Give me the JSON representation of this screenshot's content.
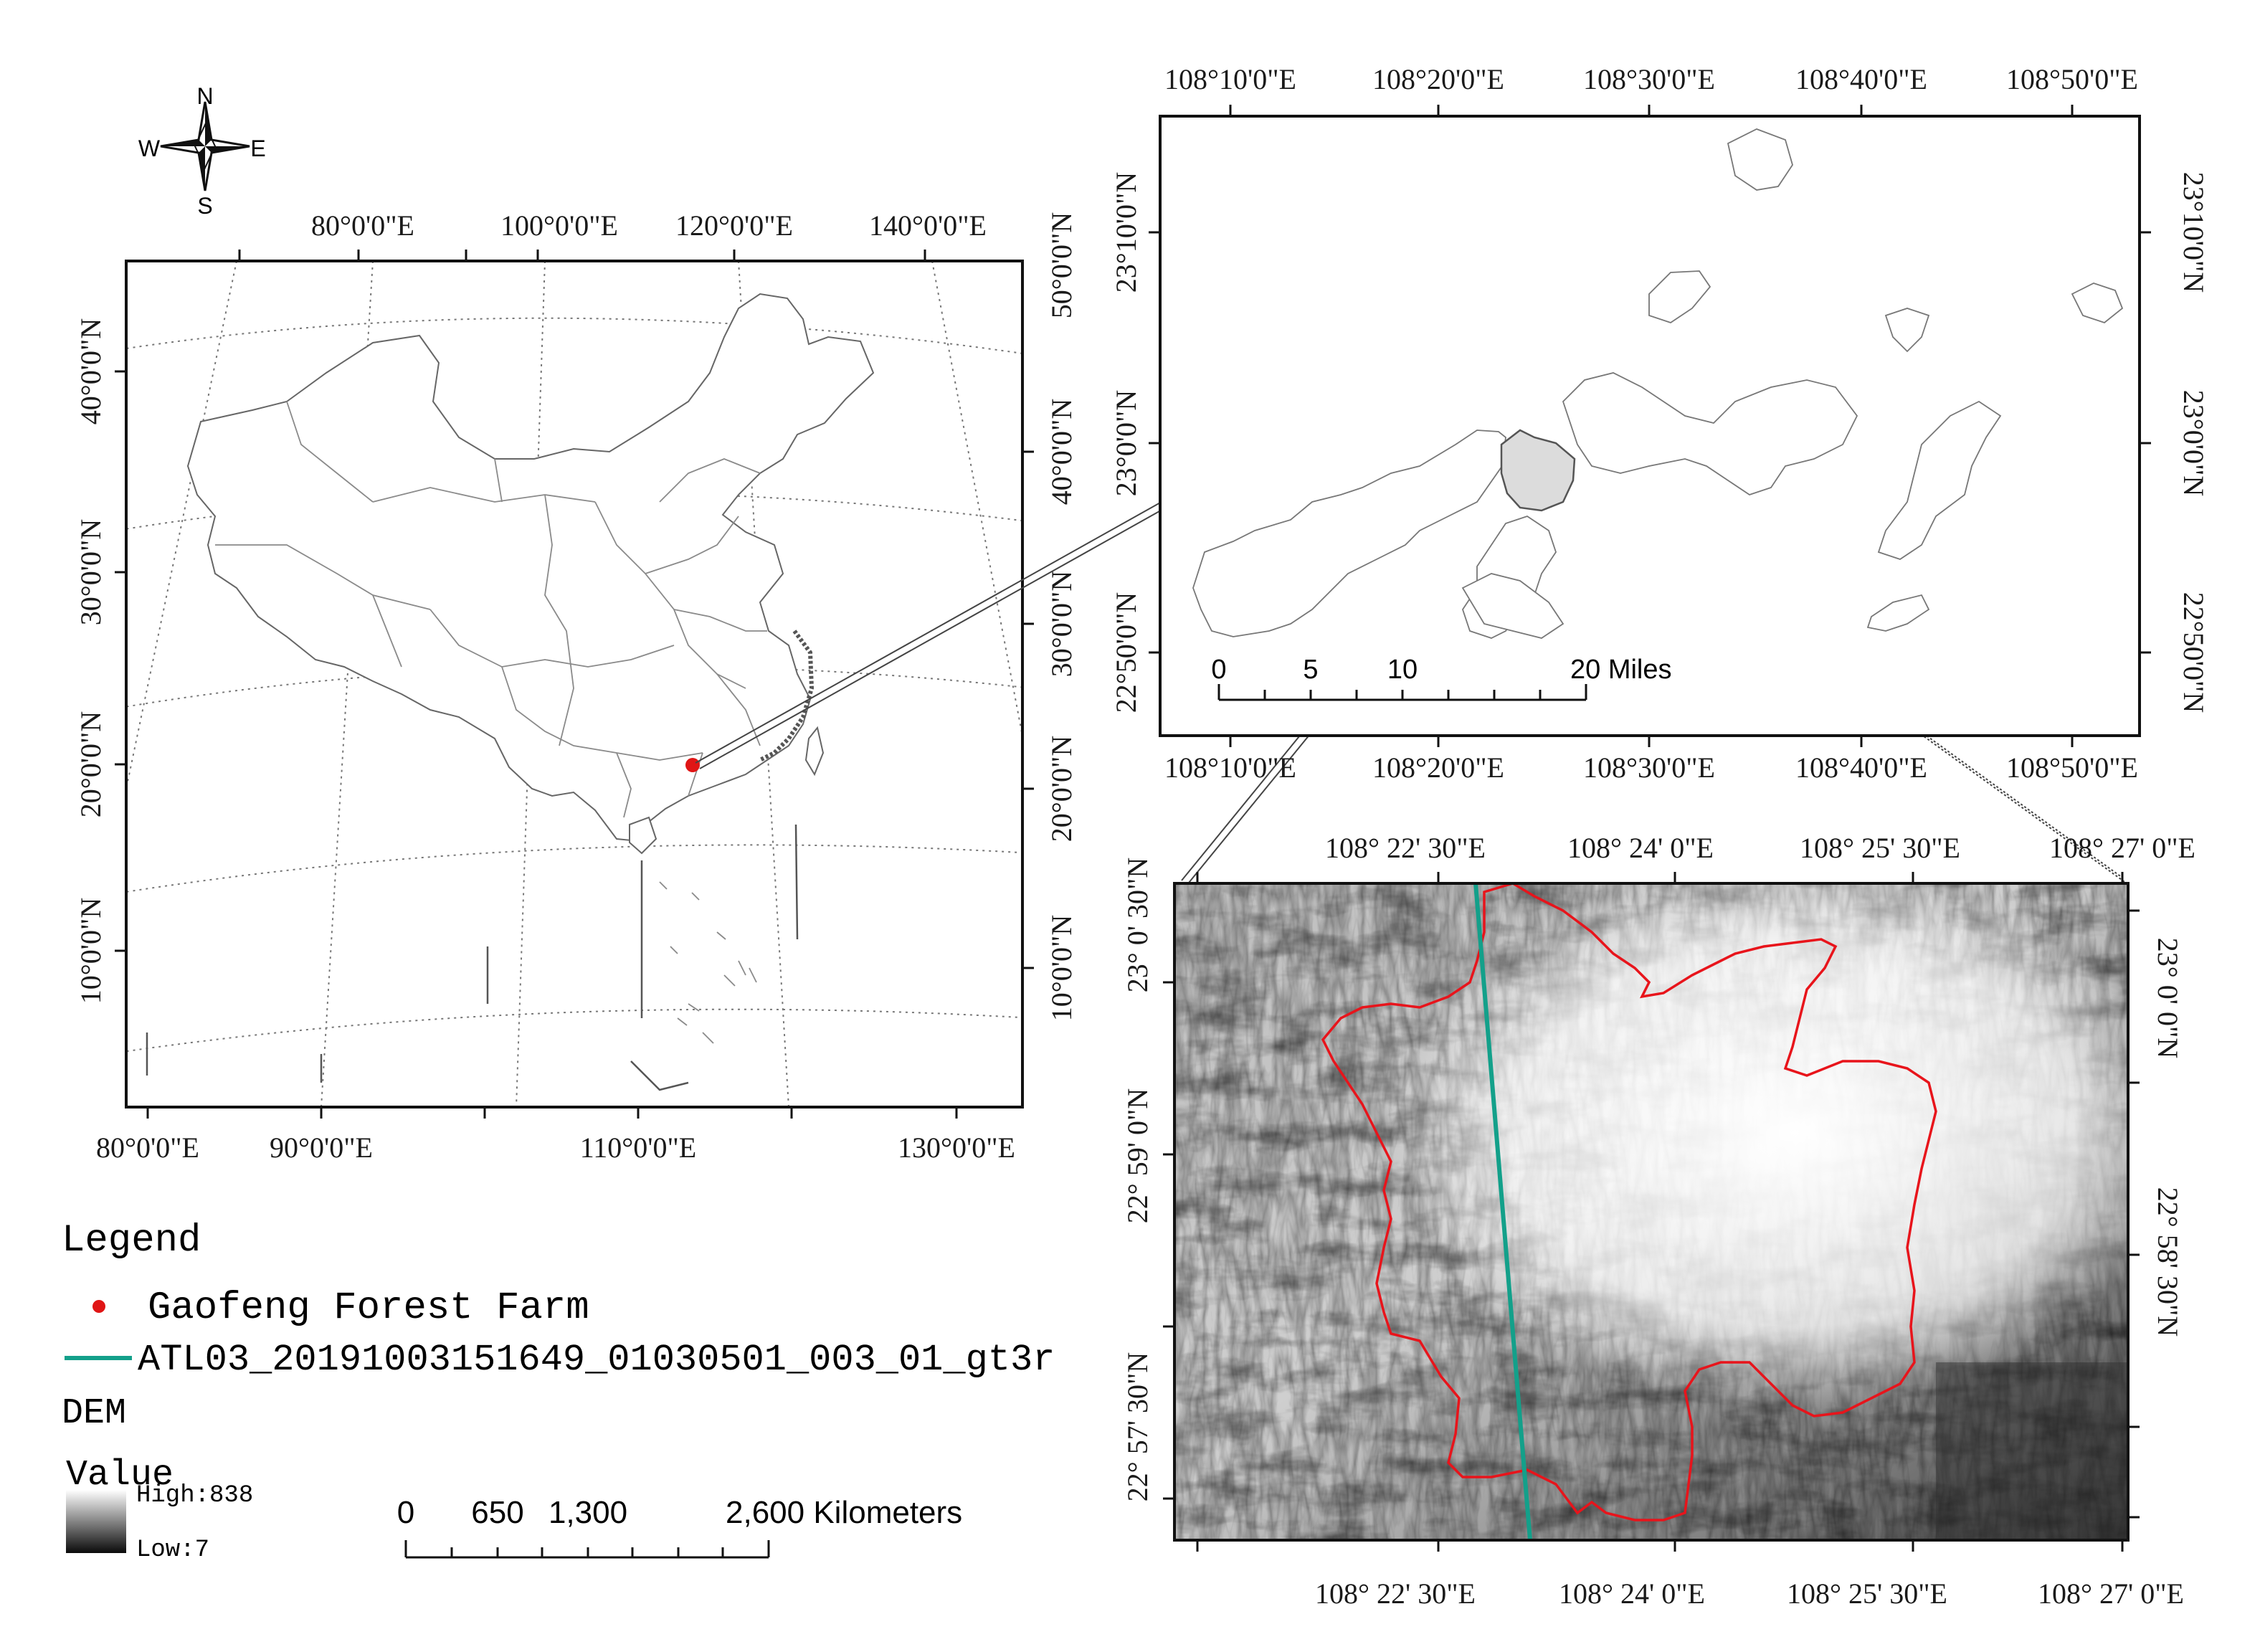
{
  "compass": {
    "n": "N",
    "s": "S",
    "e": "E",
    "w": "W"
  },
  "overview": {
    "top_ticks": [
      "80°0'0\"E",
      "100°0'0\"E",
      "120°0'0\"E",
      "140°0'0\"E"
    ],
    "bottom_ticks": [
      "80°0'0\"E",
      "90°0'0\"E",
      "110°0'0\"E",
      "130°0'0\"E"
    ],
    "left_ticks": [
      "40°0'0\"N",
      "30°0'0\"N",
      "20°0'0\"N",
      "10°0'0\"N"
    ],
    "right_ticks": [
      "50°0'0\"N",
      "40°0'0\"N",
      "30°0'0\"N",
      "20°0'0\"N",
      "10°0'0\"N"
    ]
  },
  "county": {
    "top_ticks": [
      "108°10'0\"E",
      "108°20'0\"E",
      "108°30'0\"E",
      "108°40'0\"E",
      "108°50'0\"E"
    ],
    "bottom_ticks": [
      "108°10'0\"E",
      "108°20'0\"E",
      "108°30'0\"E",
      "108°40'0\"E",
      "108°50'0\"E"
    ],
    "left_ticks": [
      "23°10'0\"N",
      "23°0'0\"N",
      "22°50'0\"N"
    ],
    "right_ticks": [
      "23°10'0\"N",
      "23°0'0\"N",
      "22°50'0\"N"
    ],
    "scale": {
      "labels": [
        "0",
        "5",
        "10",
        "20 Miles"
      ]
    }
  },
  "dem_map": {
    "top_ticks": [
      "108° 22' 30\"E",
      "108° 24' 0\"E",
      "108° 25' 30\"E",
      "108° 27' 0\"E"
    ],
    "bottom_ticks": [
      "108° 22' 30\"E",
      "108° 24' 0\"E",
      "108° 25' 30\"E",
      "108° 27' 0\"E"
    ],
    "left_ticks": [
      "23° 0' 30\"N",
      "22° 59' 0\"N",
      "22° 57' 30\"N"
    ],
    "right_ticks": [
      "23° 0' 0\"N",
      "22° 58' 30\"N"
    ]
  },
  "legend": {
    "title": "Legend",
    "farm_label": "Gaofeng Forest Farm",
    "track_label": "ATL03_20191003151649_01030501_003_01_gt3r",
    "dem_title": "DEM",
    "value_title": "Value",
    "high_label": "High:838",
    "low_label": "Low:7"
  },
  "km_scale": {
    "labels": [
      "0",
      "650",
      "1,300",
      "2,600 Kilometers"
    ]
  },
  "colors": {
    "farm_point": "#e01515",
    "boundary": "#e8141b",
    "track": "#13a08a"
  }
}
